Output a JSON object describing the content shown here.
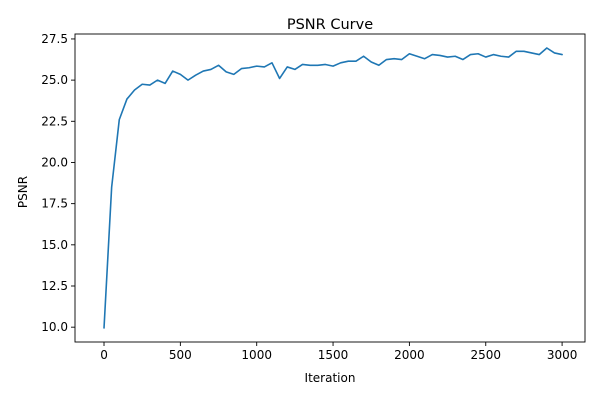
{
  "chart_data": {
    "type": "line",
    "title": "PSNR Curve",
    "xlabel": "Iteration",
    "ylabel": "PSNR",
    "xlim": [
      -190,
      3150
    ],
    "ylim": [
      9.1,
      27.8
    ],
    "xticks": [
      0,
      500,
      1000,
      1500,
      2000,
      2500,
      3000
    ],
    "xtick_labels": [
      "0",
      "500",
      "1000",
      "1500",
      "2000",
      "2500",
      "3000"
    ],
    "yticks": [
      10.0,
      12.5,
      15.0,
      17.5,
      20.0,
      22.5,
      25.0,
      27.5
    ],
    "ytick_labels": [
      "10.0",
      "12.5",
      "15.0",
      "17.5",
      "20.0",
      "22.5",
      "25.0",
      "27.5"
    ],
    "grid": false,
    "line_color": "#1f77b4",
    "series": [
      {
        "x": [
          0,
          50,
          100,
          150,
          200,
          250,
          300,
          350,
          400,
          450,
          500,
          550,
          600,
          650,
          700,
          750,
          800,
          850,
          900,
          950,
          1000,
          1050,
          1100,
          1150,
          1200,
          1250,
          1300,
          1350,
          1400,
          1450,
          1500,
          1550,
          1600,
          1650,
          1700,
          1750,
          1800,
          1850,
          1900,
          1950,
          2000,
          2050,
          2100,
          2150,
          2200,
          2250,
          2300,
          2350,
          2400,
          2450,
          2500,
          2550,
          2600,
          2650,
          2700,
          2750,
          2800,
          2850,
          2900,
          2950,
          3000
        ],
        "values": [
          9.95,
          18.5,
          22.6,
          23.85,
          24.4,
          24.75,
          24.7,
          25.0,
          24.8,
          25.55,
          25.35,
          25.0,
          25.3,
          25.55,
          25.65,
          25.9,
          25.5,
          25.35,
          25.7,
          25.75,
          25.85,
          25.8,
          26.05,
          25.1,
          25.8,
          25.65,
          25.95,
          25.9,
          25.9,
          25.95,
          25.85,
          26.05,
          26.15,
          26.15,
          26.45,
          26.1,
          25.9,
          26.25,
          26.3,
          26.25,
          26.6,
          26.45,
          26.3,
          26.55,
          26.5,
          26.4,
          26.45,
          26.25,
          26.55,
          26.6,
          26.4,
          26.55,
          26.45,
          26.4,
          26.75,
          26.75,
          26.65,
          26.55,
          26.95,
          26.65,
          26.55
        ]
      }
    ]
  }
}
